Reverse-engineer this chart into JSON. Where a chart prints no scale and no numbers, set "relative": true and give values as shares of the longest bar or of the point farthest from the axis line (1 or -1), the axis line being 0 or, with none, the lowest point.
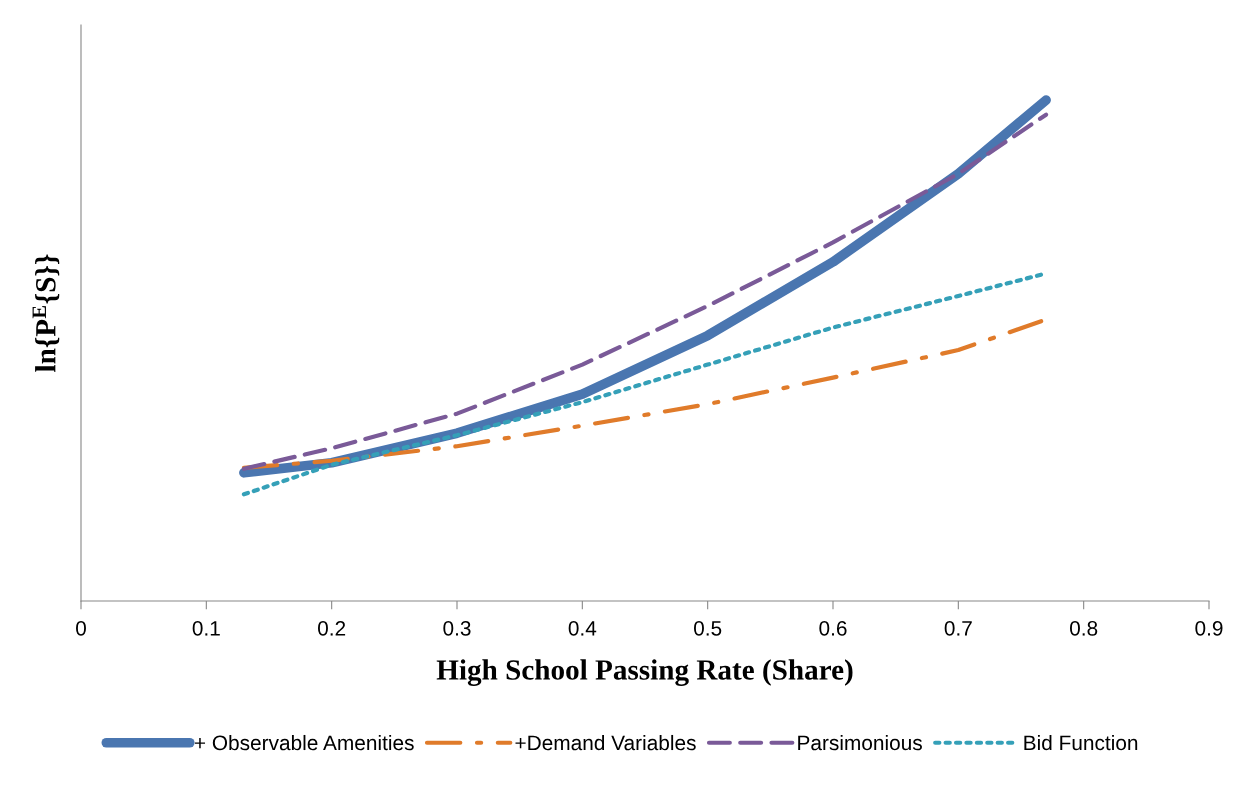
{
  "chart_data": {
    "type": "line",
    "relative": true,
    "xlabel": "High School Passing Rate (Share)",
    "ylabel": "ln{P$^{E}${S}}",
    "x": [
      0.13,
      0.2,
      0.3,
      0.4,
      0.5,
      0.6,
      0.7,
      0.77
    ],
    "xlim": [
      0,
      0.9
    ],
    "xticks": [
      0,
      0.1,
      0.2,
      0.3,
      0.4,
      0.5,
      0.6,
      0.7,
      0.8,
      0.9
    ],
    "grid": false,
    "legend": "bottom",
    "marker": "none",
    "series": [
      {
        "name": "+ Observable Amenities",
        "color": "#4a76b0",
        "line_style": "solid",
        "values": [
          0.256,
          0.276,
          0.335,
          0.413,
          0.53,
          0.677,
          0.853,
          1
        ]
      },
      {
        "name": "+Demand Variables",
        "color": "#e07b2a",
        "line_style": "dashdot",
        "values": [
          0.266,
          0.28,
          0.309,
          0.35,
          0.393,
          0.446,
          0.501,
          0.562
        ]
      },
      {
        "name": "Parsimonious",
        "color": "#7a5a98",
        "line_style": "dashed",
        "values": [
          0.264,
          0.305,
          0.374,
          0.472,
          0.589,
          0.716,
          0.853,
          0.971
        ]
      },
      {
        "name": "Bid Function",
        "color": "#35a0b8",
        "line_style": "dotted",
        "values": [
          0.213,
          0.272,
          0.331,
          0.397,
          0.472,
          0.546,
          0.609,
          0.654
        ]
      }
    ]
  }
}
